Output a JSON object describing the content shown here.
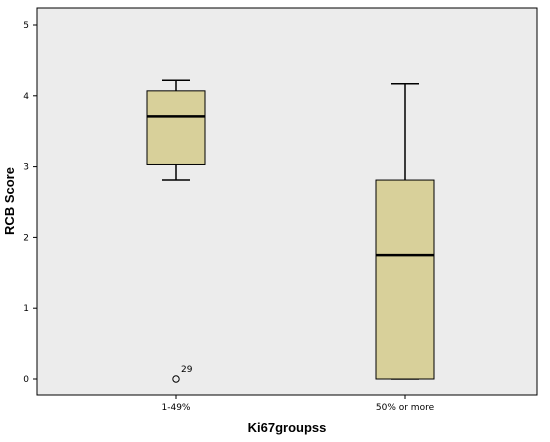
{
  "chart_data": {
    "type": "boxplot",
    "xlabel": "Ki67groupss",
    "ylabel": "RCB Score",
    "ylim": [
      0,
      5
    ],
    "yticks": [
      "0",
      "1",
      "2",
      "3",
      "4",
      "5"
    ],
    "grid": false,
    "colors": {
      "plot_background": "#ececec",
      "box_fill": "#d8d09a",
      "outline": "#000000"
    },
    "categories": [
      "1-49%",
      "50% or more"
    ],
    "boxes": [
      {
        "category": "1-49%",
        "whisker_low": 2.81,
        "q1": 3.03,
        "median": 3.71,
        "q3": 4.07,
        "whisker_high": 4.22,
        "outliers": [
          {
            "value": 0,
            "label": "29"
          }
        ]
      },
      {
        "category": "50% or more",
        "whisker_low": 0,
        "q1": 0,
        "median": 1.75,
        "q3": 2.81,
        "whisker_high": 4.17,
        "outliers": []
      }
    ]
  }
}
